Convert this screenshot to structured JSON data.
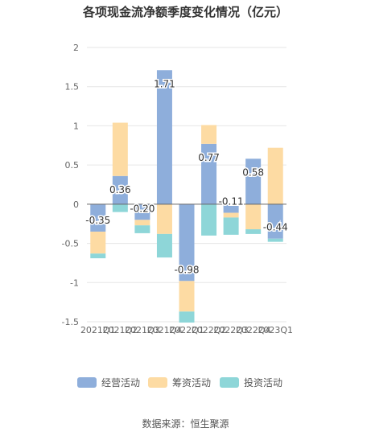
{
  "title": "各项现金流净额季度变化情况（亿元）",
  "source": "数据来源：恒生聚源",
  "chart_data": {
    "type": "bar",
    "stacked": true,
    "categories": [
      "2021Q1",
      "2021Q2",
      "2021Q3",
      "2021Q4",
      "2022Q1",
      "2022Q2",
      "2022Q3",
      "2022Q4",
      "2023Q1"
    ],
    "ylim": [
      -1.5,
      2
    ],
    "yticks": [
      2,
      1.5,
      1,
      0.5,
      0,
      -0.5,
      -1,
      -1.5
    ],
    "ytick_labels": [
      "2",
      "1.5",
      "1",
      "0.5",
      "0",
      "-0.5",
      "-1",
      "-1.5"
    ],
    "grid": true,
    "legend_position": "bottom",
    "series": [
      {
        "name": "经营活动",
        "color": "#8eaedb",
        "values": [
          -0.35,
          0.36,
          -0.2,
          1.71,
          -0.98,
          0.77,
          -0.11,
          0.58,
          -0.44
        ]
      },
      {
        "name": "筹资活动",
        "color": "#fddba3",
        "values": [
          -0.28,
          0.68,
          -0.07,
          -0.38,
          -0.39,
          0.24,
          -0.06,
          -0.32,
          0.72
        ]
      },
      {
        "name": "投资活动",
        "color": "#8ed6d8",
        "values": [
          -0.06,
          -0.1,
          -0.1,
          -0.3,
          -0.14,
          -0.4,
          -0.22,
          -0.06,
          -0.04
        ]
      }
    ],
    "data_labels": [
      "-0.35",
      "0.36",
      "-0.20",
      "1.71",
      "-0.98",
      "0.77",
      "-0.11",
      "0.58",
      "-0.44"
    ]
  }
}
